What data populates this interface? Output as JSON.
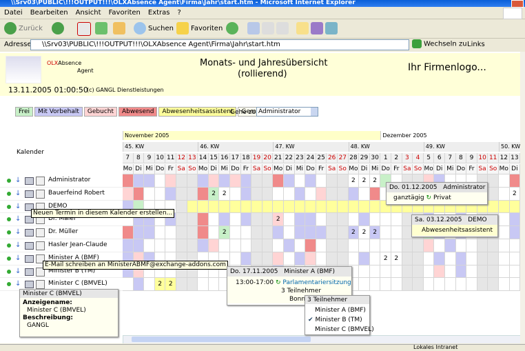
{
  "window": {
    "title": "\\\\Srv03\\PUBLIC\\!!!OUTPUT!!!\\OLXAbsence Agent\\Firma\\Jahr\\start.htm - Microsoft Internet Explorer"
  },
  "menu": [
    "Datei",
    "Bearbeiten",
    "Ansicht",
    "Favoriten",
    "Extras",
    "?"
  ],
  "toolbar": {
    "back": "Zurück",
    "search": "Suchen",
    "favorites": "Favoriten"
  },
  "address": {
    "label": "Adresse",
    "url": "\\\\Srv03\\PUBLIC\\!!!OUTPUT!!!\\OLXAbsence Agent\\Firma\\Jahr\\start.htm",
    "go": "Wechseln zu",
    "links": "Links"
  },
  "header": {
    "logo_brand": "OLX",
    "logo_word": "Absence",
    "logo_sub": "Agent",
    "title": "Monats- und Jahresübersicht",
    "subtitle": "(rollierend)",
    "company_logo": "Ihr Firmenlogo...",
    "timestamp": "13.11.2005 01:00:50",
    "copyright": "(c) GANGL Dienstleistungen"
  },
  "legend": [
    {
      "label": "Frei",
      "color": "#c8f0c8"
    },
    {
      "label": "Mit Vorbehalt",
      "color": "#c8c8f4"
    },
    {
      "label": "Gebucht",
      "color": "#ffd4d4"
    },
    {
      "label": "Abwesend",
      "color": "#f08a8a"
    },
    {
      "label": "Abwesenheitsassistent",
      "color": "#ffff9c"
    },
    {
      "label": "Gemischt",
      "color": "#fffff0"
    }
  ],
  "goto": {
    "label": "Gehe zu:",
    "selected": "Administrator"
  },
  "grid": {
    "calendar_label": "Kalender",
    "months": [
      "November 2005",
      "Dezember 2005"
    ],
    "weeks": [
      "45. KW",
      "46. KW",
      "47. KW",
      "48. KW",
      "49. KW",
      "50. KW"
    ],
    "days": [
      7,
      8,
      9,
      10,
      11,
      12,
      13,
      14,
      15,
      16,
      17,
      18,
      19,
      20,
      21,
      22,
      23,
      24,
      25,
      26,
      27,
      28,
      29,
      30,
      1,
      2,
      3,
      4,
      5,
      6,
      7,
      8,
      9,
      10,
      11,
      12,
      13
    ],
    "weekdays": [
      "Mo",
      "Di",
      "Mi",
      "Do",
      "Fr",
      "Sa",
      "So",
      "Mo",
      "Di",
      "Mi",
      "Do",
      "Fr",
      "Sa",
      "So",
      "Mo",
      "Di",
      "Mi",
      "Do",
      "Fr",
      "Sa",
      "So",
      "Mo",
      "Di",
      "Mi",
      "Do",
      "Fr",
      "Sa",
      "So",
      "Mo",
      "Di",
      "Mi",
      "Do",
      "Fr",
      "Sa",
      "So",
      "Mo",
      "Di"
    ],
    "rows": [
      {
        "name": "Administrator",
        "status": [
          3,
          1,
          1,
          null,
          2,
          null,
          null,
          1,
          2,
          1,
          2,
          1,
          null,
          null,
          3,
          1,
          null,
          1,
          null,
          null,
          null,
          null,
          null,
          null,
          0,
          null,
          null,
          null,
          2,
          1,
          null,
          null,
          null,
          null,
          null,
          null,
          3
        ],
        "counts": [
          null,
          null,
          null,
          null,
          null,
          null,
          null,
          null,
          null,
          null,
          null,
          null,
          null,
          null,
          null,
          null,
          null,
          null,
          null,
          null,
          null,
          2,
          2,
          2,
          null,
          null,
          null,
          null,
          null,
          null,
          null,
          null,
          null,
          null,
          null,
          null,
          null
        ]
      },
      {
        "name": "Bauerfeind Robert",
        "status": [
          2,
          3,
          null,
          null,
          1,
          null,
          null,
          3,
          0,
          null,
          null,
          1,
          null,
          null,
          null,
          null,
          1,
          null,
          2,
          null,
          null,
          1,
          null,
          3,
          null,
          null,
          null,
          null,
          null,
          1,
          null,
          null,
          1,
          null,
          null,
          null,
          null
        ],
        "counts": [
          null,
          null,
          null,
          null,
          null,
          null,
          null,
          null,
          2,
          2,
          null,
          null,
          null,
          null,
          null,
          null,
          null,
          null,
          null,
          null,
          null,
          null,
          null,
          null,
          null,
          null,
          null,
          null,
          null,
          null,
          null,
          null,
          null,
          null,
          null,
          null,
          2
        ]
      },
      {
        "name": "DEMO",
        "status": [
          1,
          0,
          null,
          null,
          null,
          null,
          4,
          4,
          4,
          4,
          4,
          4,
          4,
          4,
          4,
          4,
          4,
          4,
          4,
          4,
          4,
          4,
          4,
          4,
          4,
          4,
          4,
          4,
          4,
          4,
          4,
          4,
          4,
          4,
          4,
          4,
          4
        ],
        "counts": [
          null,
          null,
          null,
          null,
          null,
          null,
          null,
          null,
          null,
          null,
          null,
          null,
          null,
          null,
          null,
          null,
          null,
          null,
          null,
          null,
          null,
          null,
          null,
          null,
          null,
          null,
          null,
          null,
          null,
          null,
          null,
          null,
          null,
          null,
          null,
          null,
          null
        ]
      },
      {
        "name": "Dr. Maier",
        "status": [
          null,
          1,
          1,
          null,
          1,
          null,
          null,
          3,
          null,
          1,
          null,
          1,
          null,
          null,
          2,
          null,
          1,
          1,
          null,
          null,
          null,
          null,
          1,
          null,
          null,
          null,
          null,
          null,
          1,
          null,
          null,
          1,
          null,
          null,
          null,
          null,
          1
        ],
        "counts": [
          null,
          null,
          null,
          null,
          null,
          null,
          null,
          null,
          null,
          null,
          null,
          null,
          null,
          null,
          2,
          null,
          null,
          null,
          null,
          null,
          null,
          null,
          null,
          null,
          null,
          null,
          null,
          null,
          null,
          null,
          null,
          null,
          null,
          null,
          null,
          null,
          null
        ]
      },
      {
        "name": "Dr. Müller",
        "status": [
          3,
          1,
          1,
          null,
          null,
          null,
          null,
          3,
          null,
          0,
          null,
          null,
          null,
          null,
          1,
          null,
          1,
          1,
          1,
          null,
          null,
          1,
          null,
          1,
          null,
          null,
          null,
          null,
          0,
          1,
          null,
          1,
          null,
          null,
          null,
          null,
          1
        ],
        "counts": [
          null,
          null,
          null,
          null,
          null,
          null,
          null,
          null,
          null,
          2,
          null,
          null,
          null,
          null,
          null,
          null,
          null,
          null,
          null,
          null,
          null,
          2,
          2,
          2,
          null,
          null,
          null,
          null,
          null,
          null,
          null,
          null,
          null,
          null,
          null,
          null,
          null
        ]
      },
      {
        "name": "Hasler Jean-Claude",
        "status": [
          1,
          1,
          null,
          null,
          null,
          null,
          null,
          1,
          2,
          null,
          null,
          null,
          null,
          null,
          null,
          1,
          null,
          3,
          null,
          null,
          null,
          null,
          null,
          null,
          null,
          null,
          null,
          null,
          2,
          null,
          1,
          null,
          null,
          null,
          null,
          null,
          null
        ],
        "counts": [
          null,
          null,
          null,
          null,
          null,
          null,
          null,
          null,
          null,
          null,
          null,
          null,
          null,
          null,
          null,
          null,
          null,
          null,
          null,
          null,
          null,
          null,
          null,
          null,
          null,
          null,
          null,
          null,
          null,
          null,
          null,
          null,
          null,
          null,
          null,
          null,
          null
        ]
      },
      {
        "name": "Minister A (BMF)",
        "status": [
          1,
          2,
          1,
          null,
          null,
          null,
          null,
          null,
          null,
          null,
          null,
          1,
          null,
          null,
          2,
          null,
          1,
          2,
          null,
          null,
          null,
          null,
          1,
          null,
          null,
          null,
          null,
          null,
          null,
          1,
          null,
          1,
          null,
          null,
          null,
          null,
          null
        ],
        "counts": [
          null,
          null,
          null,
          null,
          null,
          null,
          null,
          null,
          null,
          null,
          null,
          null,
          null,
          null,
          null,
          null,
          null,
          null,
          null,
          null,
          null,
          null,
          null,
          null,
          2,
          2,
          null,
          null,
          null,
          null,
          null,
          null,
          null,
          null,
          null,
          null,
          null
        ]
      },
      {
        "name": "Minister B (TM)",
        "status": [
          1,
          2,
          null,
          null,
          null,
          null,
          null,
          null,
          null,
          null,
          null,
          null,
          null,
          null,
          1,
          null,
          null,
          null,
          null,
          null,
          null,
          null,
          null,
          null,
          null,
          null,
          null,
          null,
          null,
          2,
          null,
          1,
          null,
          null,
          null,
          null,
          null
        ],
        "counts": [
          null,
          null,
          null,
          null,
          null,
          null,
          null,
          null,
          null,
          null,
          null,
          null,
          null,
          null,
          null,
          null,
          null,
          null,
          null,
          null,
          null,
          null,
          null,
          null,
          null,
          null,
          null,
          null,
          null,
          null,
          null,
          null,
          null,
          null,
          null,
          null,
          null
        ]
      },
      {
        "name": "Minister C (BMVEL)",
        "status": [
          null,
          1,
          null,
          4,
          4,
          null,
          null,
          null,
          null,
          null,
          null,
          null,
          null,
          null,
          null,
          null,
          null,
          null,
          null,
          null,
          null,
          null,
          null,
          null,
          null,
          null,
          null,
          null,
          null,
          null,
          null,
          null,
          null,
          null,
          null,
          null,
          null
        ],
        "counts": [
          null,
          null,
          null,
          2,
          2,
          null,
          null,
          null,
          null,
          null,
          null,
          null,
          null,
          null,
          null,
          null,
          null,
          null,
          null,
          null,
          null,
          null,
          null,
          null,
          null,
          null,
          null,
          null,
          null,
          null,
          null,
          null,
          null,
          null,
          null,
          null,
          null
        ]
      }
    ]
  },
  "popups": {
    "admin": {
      "date": "Do. 01.12.2005",
      "name": "Administrator",
      "time": "ganztägig",
      "category": "Privat"
    },
    "demo": {
      "date": "Sa. 03.12.2005",
      "name": "DEMO",
      "text": "Abwesenheitsassistent"
    },
    "new_tooltip": "Neuen Termin in diesem Kalender erstellen...",
    "mail_tooltip": "E-Mail schreiben an MinisterABMF@exchange-addons.com",
    "meeting": {
      "date": "Do. 17.11.2005",
      "name": "Minister A (BMF)",
      "time": "13:00-17:00",
      "subject": "Parlamentariersitzung",
      "participants": "3 Teilnehmer",
      "location": "Bonn"
    },
    "participants": {
      "header": "3 Teilnehmer",
      "items": [
        "Minister A (BMF)",
        "Minister B (TM)",
        "Minister C (BMVEL)"
      ]
    },
    "info": {
      "title": "Minister C (BMVEL)",
      "display_label": "Anzeigename:",
      "display": "Minister C (BMVEL)",
      "desc_label": "Beschreibung:",
      "desc": "GANGL"
    }
  },
  "status": {
    "zone": "Lokales Intranet"
  }
}
